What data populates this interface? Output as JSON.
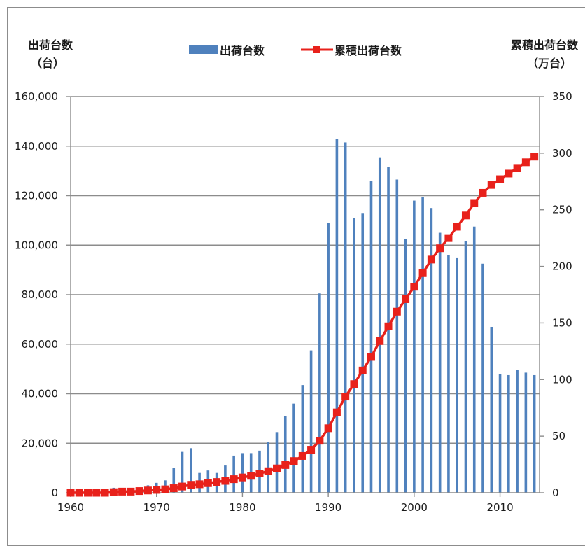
{
  "chart_data": {
    "type": "bar",
    "left_axis_title": "出荷台数",
    "left_axis_unit": "（台）",
    "right_axis_title": "累積出荷台数",
    "right_axis_unit": "（万台）",
    "legend": [
      {
        "name": "出荷台数",
        "color": "#4f81bd",
        "marker": "bar"
      },
      {
        "name": "累積出荷台数",
        "color": "#e8211b",
        "marker": "line-square"
      }
    ],
    "left_ylim": [
      0,
      160000
    ],
    "right_ylim": [
      0,
      350
    ],
    "left_ticks": [
      "0",
      "20,000",
      "40,000",
      "60,000",
      "80,000",
      "100,000",
      "120,000",
      "140,000",
      "160,000"
    ],
    "right_ticks": [
      "0",
      "50",
      "100",
      "150",
      "200",
      "250",
      "300",
      "350"
    ],
    "x_ticks": [
      "1960",
      "1970",
      "1980",
      "1990",
      "2000",
      "2010"
    ],
    "grid": true,
    "series": [
      {
        "name": "出荷台数",
        "type": "bar",
        "axis": "left",
        "years": [
          1960,
          1961,
          1962,
          1963,
          1964,
          1965,
          1966,
          1967,
          1968,
          1969,
          1970,
          1971,
          1972,
          1973,
          1974,
          1975,
          1976,
          1977,
          1978,
          1979,
          1980,
          1981,
          1982,
          1983,
          1984,
          1985,
          1986,
          1987,
          1988,
          1989,
          1990,
          1991,
          1992,
          1993,
          1994,
          1995,
          1996,
          1997,
          1998,
          1999,
          2000,
          2001,
          2002,
          2003,
          2004,
          2005,
          2006,
          2007,
          2008,
          2009,
          2010,
          2011,
          2012,
          2013,
          2014
        ],
        "values": [
          0,
          0,
          0,
          0,
          0,
          2000,
          1000,
          500,
          1000,
          3000,
          4000,
          5000,
          10000,
          16500,
          18000,
          8000,
          9000,
          8000,
          11000,
          15000,
          16000,
          16000,
          17000,
          20500,
          24500,
          31000,
          36000,
          43500,
          57500,
          80500,
          109000,
          143000,
          141500,
          111000,
          113000,
          126000,
          135500,
          131500,
          126500,
          102500,
          118000,
          119500,
          115000,
          105000,
          96000,
          95000,
          101500,
          107500,
          92500,
          67000,
          48000,
          47500,
          49500,
          48500,
          47500
        ]
      },
      {
        "name": "累積出荷台数",
        "type": "line",
        "axis": "right",
        "years": [
          1960,
          1961,
          1962,
          1963,
          1964,
          1965,
          1966,
          1967,
          1968,
          1969,
          1970,
          1971,
          1972,
          1973,
          1974,
          1975,
          1976,
          1977,
          1978,
          1979,
          1980,
          1981,
          1982,
          1983,
          1984,
          1985,
          1986,
          1987,
          1988,
          1989,
          1990,
          1991,
          1992,
          1993,
          1994,
          1995,
          1996,
          1997,
          1998,
          1999,
          2000,
          2001,
          2002,
          2003,
          2004,
          2005,
          2006,
          2007,
          2008,
          2009,
          2010,
          2011,
          2012,
          2013,
          2014
        ],
        "values": [
          0,
          0,
          0,
          0,
          0,
          0.5,
          1,
          1,
          1.5,
          2,
          2.5,
          3,
          4,
          5.5,
          7,
          7.5,
          8.5,
          9.5,
          10.5,
          12,
          13.5,
          15,
          17,
          19,
          21.5,
          24.5,
          28,
          32.5,
          38,
          46,
          57,
          71,
          85,
          96,
          108,
          120,
          134,
          147,
          160,
          171,
          182,
          194,
          206,
          216,
          225,
          235,
          245,
          256,
          265,
          272,
          277,
          282,
          287,
          292,
          297
        ]
      }
    ]
  }
}
